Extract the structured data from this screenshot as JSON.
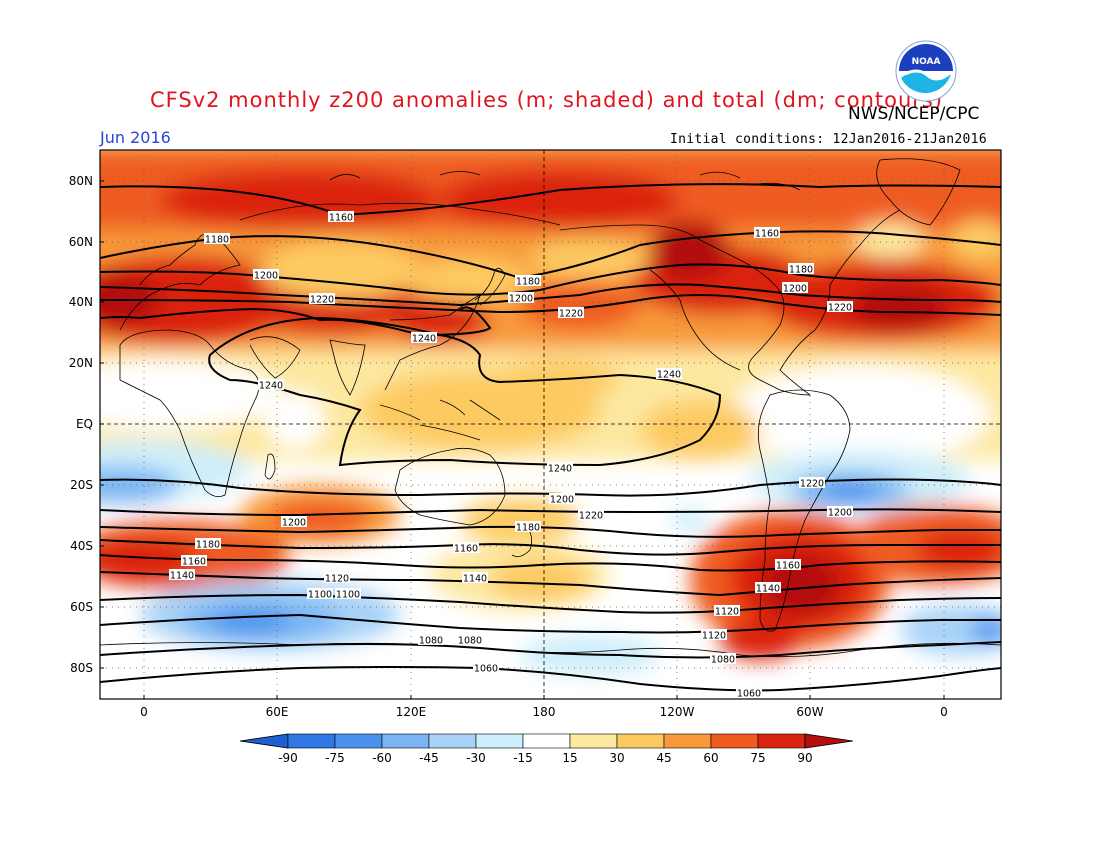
{
  "header": {
    "title": "CFSv2 monthly z200 anomalies (m; shaded) and total (dm; contours)",
    "month": "Jun 2016",
    "agency": "NWS/NCEP/CPC",
    "initial_conditions": "Initial conditions: 12Jan2016-21Jan2016",
    "logo_text": "NOAA"
  },
  "map": {
    "lat_ticks": [
      "80N",
      "60N",
      "40N",
      "20N",
      "EQ",
      "20S",
      "40S",
      "60S",
      "80S"
    ],
    "lon_ticks": [
      "0",
      "60E",
      "120E",
      "180",
      "120W",
      "60W",
      "0"
    ]
  },
  "colorbar": {
    "labels": [
      "-90",
      "-75",
      "-60",
      "-45",
      "-30",
      "-15",
      "15",
      "30",
      "45",
      "60",
      "75",
      "90"
    ],
    "colors": [
      "#1f5fd6",
      "#2f78e6",
      "#4a92ee",
      "#7ab5f3",
      "#a8d3f7",
      "#cdeefa",
      "#ffffff",
      "#fde8a0",
      "#fdca62",
      "#f89a3a",
      "#ef5b20",
      "#db2410",
      "#b30f0f"
    ]
  },
  "contour_labels": [
    "1160",
    "1180",
    "1200",
    "1220",
    "1240",
    "1240",
    "1240",
    "1220",
    "1200",
    "1180",
    "1160",
    "1140",
    "1120",
    "1100",
    "1080",
    "1060"
  ],
  "contour_label_list": [
    "1160",
    "1180",
    "1200",
    "1220",
    "1240",
    "1240",
    "1180",
    "1200",
    "1220",
    "1240",
    "1160",
    "1180",
    "1200",
    "1220",
    "1240",
    "1220",
    "1200",
    "1220",
    "1200",
    "1180",
    "1160",
    "1200",
    "1180",
    "1160",
    "1140",
    "1120",
    "1140",
    "1120",
    "1100",
    "1080",
    "1060",
    "1080",
    "1060",
    "1160",
    "1140",
    "1120",
    "1100",
    "1080"
  ]
}
